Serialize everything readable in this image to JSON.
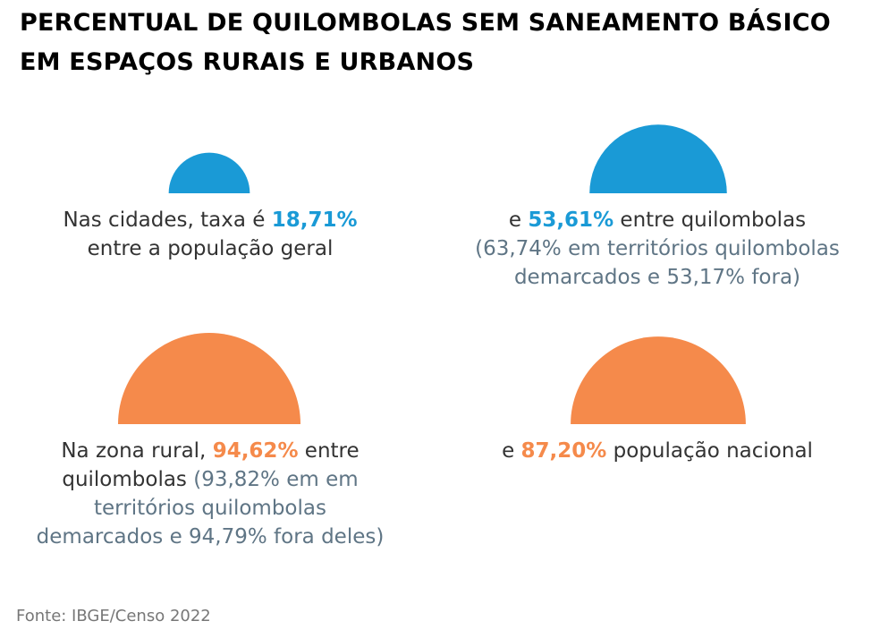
{
  "title": {
    "line1": "PERCENTUAL DE QUILOMBOLAS SEM SANEAMENTO BÁSICO",
    "line2": "EM ESPAÇOS RURAIS E URBANOS"
  },
  "colors": {
    "urban": "#1a9ad6",
    "rural": "#f58a4b",
    "secondary_text": "#5f7585"
  },
  "chart_data": {
    "type": "area",
    "title": "PERCENTUAL DE QUILOMBOLAS SEM SANEAMENTO BÁSICO EM ESPAÇOS RURAIS E URBANOS",
    "unit": "%",
    "series": [
      {
        "name": "Nas cidades",
        "values": [
          {
            "label": "população geral",
            "value": 18.71
          },
          {
            "label": "quilombolas",
            "value": 53.61
          },
          {
            "label": "em territórios quilombolas demarcados",
            "value": 63.74
          },
          {
            "label": "fora",
            "value": 53.17
          }
        ]
      },
      {
        "name": "Na zona rural",
        "values": [
          {
            "label": "quilombolas",
            "value": 94.62
          },
          {
            "label": "em territórios quilombolas demarcados",
            "value": 93.82
          },
          {
            "label": "fora deles",
            "value": 94.79
          },
          {
            "label": "população nacional",
            "value": 87.2
          }
        ]
      }
    ]
  },
  "cells": {
    "urban_general": {
      "pre": "Nas cidades, taxa é ",
      "value": "18,71%",
      "line2": "entre a população geral"
    },
    "urban_quilombola": {
      "pre": "e ",
      "value": "53,61%",
      "post": " entre quilombolas",
      "line2": "(63,74% em territórios quilombolas",
      "line3": "demarcados e 53,17% fora)"
    },
    "rural_quilombola": {
      "pre": "Na zona rural, ",
      "value": "94,62%",
      "post": " entre",
      "line2a": "quilombolas ",
      "line2b": "(93,82% em em",
      "line3": "territórios quilombolas",
      "line4": "demarcados e 94,79% fora deles)"
    },
    "rural_national": {
      "pre": "e ",
      "value": "87,20%",
      "post": " população nacional"
    }
  },
  "source": "Fonte: IBGE/Censo 2022"
}
